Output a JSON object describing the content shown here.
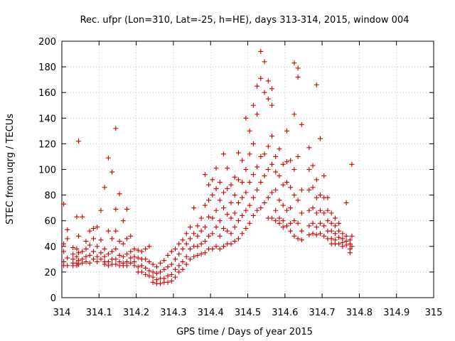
{
  "chart_data": {
    "type": "scatter",
    "title": "Rec. ufpr (Lon=310, Lat=-25, h=HE), days 313-314, 2015, window 004",
    "xlabel": "GPS time / Days of year 2015",
    "ylabel": "STEC from uqrg / TECUs",
    "xlim": [
      314,
      315
    ],
    "ylim": [
      0,
      200
    ],
    "xticks": [
      314,
      314.1,
      314.2,
      314.3,
      314.4,
      314.5,
      314.6,
      314.7,
      314.8,
      314.9,
      315
    ],
    "xtick_labels": [
      "314",
      "314.1",
      "314.2",
      "314.3",
      "314.4",
      "314.5",
      "314.6",
      "314.7",
      "314.8",
      "314.9",
      "315"
    ],
    "yticks": [
      0,
      20,
      40,
      60,
      80,
      100,
      120,
      140,
      160,
      180,
      200
    ],
    "ytick_labels": [
      "0",
      "20",
      "40",
      "60",
      "80",
      "100",
      "120",
      "140",
      "160",
      "180",
      "200"
    ],
    "grid": true,
    "marker": "plus",
    "color": "#cc0000",
    "points": [
      [
        314.005,
        73
      ],
      [
        314.005,
        42
      ],
      [
        314.005,
        36
      ],
      [
        314.005,
        28
      ],
      [
        314.005,
        25
      ],
      [
        314.015,
        53
      ],
      [
        314.015,
        46
      ],
      [
        314.015,
        31
      ],
      [
        314.015,
        25
      ],
      [
        314.03,
        39
      ],
      [
        314.03,
        34
      ],
      [
        314.03,
        30
      ],
      [
        314.03,
        27
      ],
      [
        314.03,
        25
      ],
      [
        314.04,
        63
      ],
      [
        314.04,
        38
      ],
      [
        314.04,
        32
      ],
      [
        314.04,
        27
      ],
      [
        314.04,
        25
      ],
      [
        314.045,
        122
      ],
      [
        314.045,
        48
      ],
      [
        314.045,
        35
      ],
      [
        314.045,
        29
      ],
      [
        314.045,
        26
      ],
      [
        314.055,
        63
      ],
      [
        314.055,
        36
      ],
      [
        314.055,
        30
      ],
      [
        314.055,
        27
      ],
      [
        314.065,
        44
      ],
      [
        314.065,
        38
      ],
      [
        314.065,
        32
      ],
      [
        314.065,
        28
      ],
      [
        314.075,
        52
      ],
      [
        314.075,
        41
      ],
      [
        314.075,
        33
      ],
      [
        314.075,
        27
      ],
      [
        314.085,
        54
      ],
      [
        314.085,
        46
      ],
      [
        314.085,
        36
      ],
      [
        314.085,
        30
      ],
      [
        314.095,
        55
      ],
      [
        314.095,
        40
      ],
      [
        314.095,
        32
      ],
      [
        314.095,
        28
      ],
      [
        314.105,
        68
      ],
      [
        314.105,
        45
      ],
      [
        314.105,
        35
      ],
      [
        314.105,
        30
      ],
      [
        314.115,
        86
      ],
      [
        314.115,
        38
      ],
      [
        314.115,
        32
      ],
      [
        314.115,
        28
      ],
      [
        314.115,
        26
      ],
      [
        314.125,
        109
      ],
      [
        314.125,
        52
      ],
      [
        314.125,
        34
      ],
      [
        314.125,
        28
      ],
      [
        314.125,
        25
      ],
      [
        314.135,
        98
      ],
      [
        314.135,
        46
      ],
      [
        314.135,
        36
      ],
      [
        314.135,
        30
      ],
      [
        314.135,
        26
      ],
      [
        314.145,
        132
      ],
      [
        314.145,
        69
      ],
      [
        314.145,
        52
      ],
      [
        314.145,
        38
      ],
      [
        314.145,
        30
      ],
      [
        314.145,
        26
      ],
      [
        314.155,
        81
      ],
      [
        314.155,
        44
      ],
      [
        314.155,
        33
      ],
      [
        314.155,
        28
      ],
      [
        314.155,
        25
      ],
      [
        314.165,
        60
      ],
      [
        314.165,
        42
      ],
      [
        314.165,
        32
      ],
      [
        314.165,
        27
      ],
      [
        314.165,
        25
      ],
      [
        314.175,
        69
      ],
      [
        314.175,
        46
      ],
      [
        314.175,
        34
      ],
      [
        314.175,
        28
      ],
      [
        314.175,
        25
      ],
      [
        314.185,
        48
      ],
      [
        314.185,
        36
      ],
      [
        314.185,
        31
      ],
      [
        314.185,
        27
      ],
      [
        314.195,
        38
      ],
      [
        314.195,
        32
      ],
      [
        314.195,
        28
      ],
      [
        314.195,
        25
      ],
      [
        314.205,
        37
      ],
      [
        314.205,
        31
      ],
      [
        314.205,
        24
      ],
      [
        314.205,
        20
      ],
      [
        314.215,
        36
      ],
      [
        314.215,
        30
      ],
      [
        314.215,
        25
      ],
      [
        314.215,
        20
      ],
      [
        314.225,
        38
      ],
      [
        314.225,
        30
      ],
      [
        314.225,
        23
      ],
      [
        314.225,
        18
      ],
      [
        314.235,
        40
      ],
      [
        314.235,
        28
      ],
      [
        314.235,
        21
      ],
      [
        314.235,
        17
      ],
      [
        314.245,
        26
      ],
      [
        314.245,
        20
      ],
      [
        314.245,
        16
      ],
      [
        314.245,
        12
      ],
      [
        314.255,
        24
      ],
      [
        314.255,
        19
      ],
      [
        314.255,
        14
      ],
      [
        314.255,
        11
      ],
      [
        314.265,
        27
      ],
      [
        314.265,
        20
      ],
      [
        314.265,
        15
      ],
      [
        314.265,
        11
      ],
      [
        314.275,
        29
      ],
      [
        314.275,
        22
      ],
      [
        314.275,
        15
      ],
      [
        314.275,
        12
      ],
      [
        314.285,
        33
      ],
      [
        314.285,
        24
      ],
      [
        314.285,
        17
      ],
      [
        314.285,
        12
      ],
      [
        314.295,
        36
      ],
      [
        314.295,
        26
      ],
      [
        314.295,
        18
      ],
      [
        314.295,
        13
      ],
      [
        314.305,
        38
      ],
      [
        314.305,
        30
      ],
      [
        314.305,
        22
      ],
      [
        314.305,
        16
      ],
      [
        314.315,
        42
      ],
      [
        314.315,
        34
      ],
      [
        314.315,
        25
      ],
      [
        314.315,
        20
      ],
      [
        314.325,
        45
      ],
      [
        314.325,
        38
      ],
      [
        314.325,
        28
      ],
      [
        314.325,
        22
      ],
      [
        314.335,
        50
      ],
      [
        314.335,
        42
      ],
      [
        314.335,
        32
      ],
      [
        314.335,
        26
      ],
      [
        314.345,
        55
      ],
      [
        314.345,
        46
      ],
      [
        314.345,
        38
      ],
      [
        314.345,
        30
      ],
      [
        314.355,
        70
      ],
      [
        314.355,
        50
      ],
      [
        314.355,
        40
      ],
      [
        314.355,
        32
      ],
      [
        314.365,
        56
      ],
      [
        314.365,
        48
      ],
      [
        314.365,
        40
      ],
      [
        314.365,
        33
      ],
      [
        314.375,
        62
      ],
      [
        314.375,
        52
      ],
      [
        314.375,
        42
      ],
      [
        314.375,
        34
      ],
      [
        314.385,
        96
      ],
      [
        314.385,
        72
      ],
      [
        314.385,
        55
      ],
      [
        314.385,
        44
      ],
      [
        314.385,
        35
      ],
      [
        314.395,
        88
      ],
      [
        314.395,
        76
      ],
      [
        314.395,
        63
      ],
      [
        314.395,
        48
      ],
      [
        314.395,
        38
      ],
      [
        314.405,
        92
      ],
      [
        314.405,
        80
      ],
      [
        314.405,
        62
      ],
      [
        314.405,
        50
      ],
      [
        314.405,
        38
      ],
      [
        314.415,
        101
      ],
      [
        314.415,
        85
      ],
      [
        314.415,
        68
      ],
      [
        314.415,
        55
      ],
      [
        314.415,
        40
      ],
      [
        314.425,
        90
      ],
      [
        314.425,
        76
      ],
      [
        314.425,
        60
      ],
      [
        314.425,
        48
      ],
      [
        314.425,
        38
      ],
      [
        314.435,
        112
      ],
      [
        314.435,
        82
      ],
      [
        314.435,
        70
      ],
      [
        314.435,
        54
      ],
      [
        314.435,
        40
      ],
      [
        314.445,
        101
      ],
      [
        314.445,
        85
      ],
      [
        314.445,
        65
      ],
      [
        314.445,
        52
      ],
      [
        314.445,
        42
      ],
      [
        314.455,
        88
      ],
      [
        314.455,
        74
      ],
      [
        314.455,
        62
      ],
      [
        314.455,
        50
      ],
      [
        314.455,
        42
      ],
      [
        314.465,
        94
      ],
      [
        314.465,
        80
      ],
      [
        314.465,
        66
      ],
      [
        314.465,
        55
      ],
      [
        314.465,
        44
      ],
      [
        314.475,
        113
      ],
      [
        314.475,
        92
      ],
      [
        314.475,
        74
      ],
      [
        314.475,
        60
      ],
      [
        314.475,
        46
      ],
      [
        314.485,
        107
      ],
      [
        314.485,
        90
      ],
      [
        314.485,
        78
      ],
      [
        314.485,
        64
      ],
      [
        314.485,
        50
      ],
      [
        314.495,
        140
      ],
      [
        314.495,
        100
      ],
      [
        314.495,
        82
      ],
      [
        314.495,
        68
      ],
      [
        314.495,
        54
      ],
      [
        314.505,
        130
      ],
      [
        314.505,
        112
      ],
      [
        314.505,
        90
      ],
      [
        314.505,
        72
      ],
      [
        314.505,
        58
      ],
      [
        314.515,
        150
      ],
      [
        314.515,
        120
      ],
      [
        314.515,
        96
      ],
      [
        314.515,
        78
      ],
      [
        314.515,
        64
      ],
      [
        314.525,
        165
      ],
      [
        314.525,
        143
      ],
      [
        314.525,
        102
      ],
      [
        314.525,
        84
      ],
      [
        314.525,
        68
      ],
      [
        314.535,
        192
      ],
      [
        314.535,
        171
      ],
      [
        314.535,
        110
      ],
      [
        314.535,
        90
      ],
      [
        314.535,
        70
      ],
      [
        314.545,
        184
      ],
      [
        314.545,
        160
      ],
      [
        314.545,
        112
      ],
      [
        314.545,
        95
      ],
      [
        314.545,
        74
      ],
      [
        314.555,
        169
      ],
      [
        314.555,
        155
      ],
      [
        314.555,
        118
      ],
      [
        314.555,
        100
      ],
      [
        314.555,
        78
      ],
      [
        314.555,
        62
      ],
      [
        314.565,
        163
      ],
      [
        314.565,
        150
      ],
      [
        314.565,
        126
      ],
      [
        314.565,
        104
      ],
      [
        314.565,
        82
      ],
      [
        314.565,
        62
      ],
      [
        314.575,
        110
      ],
      [
        314.575,
        98
      ],
      [
        314.575,
        84
      ],
      [
        314.575,
        68
      ],
      [
        314.575,
        60
      ],
      [
        314.585,
        116
      ],
      [
        314.585,
        95
      ],
      [
        314.585,
        76
      ],
      [
        314.585,
        62
      ],
      [
        314.585,
        58
      ],
      [
        314.595,
        104
      ],
      [
        314.595,
        88
      ],
      [
        314.595,
        72
      ],
      [
        314.595,
        60
      ],
      [
        314.595,
        55
      ],
      [
        314.605,
        130
      ],
      [
        314.605,
        106
      ],
      [
        314.605,
        90
      ],
      [
        314.605,
        68
      ],
      [
        314.605,
        56
      ],
      [
        314.615,
        107
      ],
      [
        314.615,
        86
      ],
      [
        314.615,
        70
      ],
      [
        314.615,
        58
      ],
      [
        314.615,
        52
      ],
      [
        314.625,
        183
      ],
      [
        314.625,
        143
      ],
      [
        314.625,
        100
      ],
      [
        314.625,
        80
      ],
      [
        314.625,
        60
      ],
      [
        314.625,
        48
      ],
      [
        314.635,
        179
      ],
      [
        314.635,
        172
      ],
      [
        314.635,
        110
      ],
      [
        314.635,
        76
      ],
      [
        314.635,
        58
      ],
      [
        314.635,
        46
      ],
      [
        314.645,
        135
      ],
      [
        314.645,
        84
      ],
      [
        314.645,
        66
      ],
      [
        314.645,
        52
      ],
      [
        314.645,
        45
      ],
      [
        314.665,
        117
      ],
      [
        314.665,
        100
      ],
      [
        314.665,
        84
      ],
      [
        314.665,
        68
      ],
      [
        314.665,
        56
      ],
      [
        314.665,
        49
      ],
      [
        314.675,
        103
      ],
      [
        314.675,
        86
      ],
      [
        314.675,
        70
      ],
      [
        314.675,
        58
      ],
      [
        314.675,
        50
      ],
      [
        314.685,
        166
      ],
      [
        314.685,
        92
      ],
      [
        314.685,
        78
      ],
      [
        314.685,
        66
      ],
      [
        314.685,
        55
      ],
      [
        314.685,
        49
      ],
      [
        314.695,
        124
      ],
      [
        314.695,
        80
      ],
      [
        314.695,
        68
      ],
      [
        314.695,
        58
      ],
      [
        314.695,
        50
      ],
      [
        314.705,
        95
      ],
      [
        314.705,
        78
      ],
      [
        314.705,
        66
      ],
      [
        314.705,
        56
      ],
      [
        314.705,
        48
      ],
      [
        314.715,
        78
      ],
      [
        314.715,
        68
      ],
      [
        314.715,
        60
      ],
      [
        314.715,
        52
      ],
      [
        314.715,
        46
      ],
      [
        314.725,
        66
      ],
      [
        314.725,
        58
      ],
      [
        314.725,
        52
      ],
      [
        314.725,
        46
      ],
      [
        314.725,
        42
      ],
      [
        314.735,
        62
      ],
      [
        314.735,
        56
      ],
      [
        314.735,
        50
      ],
      [
        314.735,
        45
      ],
      [
        314.735,
        42
      ],
      [
        314.745,
        58
      ],
      [
        314.745,
        52
      ],
      [
        314.745,
        47
      ],
      [
        314.745,
        42
      ],
      [
        314.755,
        50
      ],
      [
        314.755,
        46
      ],
      [
        314.755,
        43
      ],
      [
        314.755,
        40
      ],
      [
        314.765,
        74
      ],
      [
        314.765,
        48
      ],
      [
        314.765,
        44
      ],
      [
        314.765,
        41
      ],
      [
        314.775,
        45
      ],
      [
        314.775,
        42
      ],
      [
        314.775,
        38
      ],
      [
        314.775,
        35
      ],
      [
        314.78,
        104
      ],
      [
        314.78,
        48
      ],
      [
        314.78,
        40
      ]
    ]
  }
}
